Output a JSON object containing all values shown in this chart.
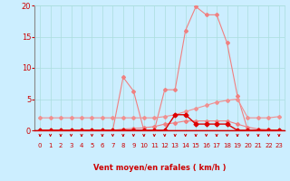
{
  "x": [
    0,
    1,
    2,
    3,
    4,
    5,
    6,
    7,
    8,
    9,
    10,
    11,
    12,
    13,
    14,
    15,
    16,
    17,
    18,
    19,
    20,
    21,
    22,
    23
  ],
  "line_top": [
    0,
    0,
    0,
    0,
    0,
    0,
    0,
    0,
    8.5,
    6.3,
    0,
    0,
    6.5,
    6.5,
    16,
    19.8,
    18.5,
    18.5,
    14,
    5.5,
    0,
    0,
    0,
    0
  ],
  "line_moyen": [
    2,
    2,
    2,
    2,
    2,
    2,
    2,
    2,
    2,
    2,
    2,
    2,
    2.2,
    2.5,
    3,
    3.5,
    4,
    4.5,
    4.8,
    5,
    2,
    2,
    2,
    2.2
  ],
  "line_rafales": [
    0,
    0,
    0,
    0,
    0,
    0,
    0,
    0,
    0.2,
    0.3,
    0.4,
    0.6,
    1,
    1.2,
    1.5,
    1.5,
    1.5,
    1.5,
    1.5,
    1,
    0.5,
    0.2,
    0.1,
    0
  ],
  "line_dark": [
    0,
    0,
    0,
    0,
    0,
    0,
    0,
    0,
    0,
    0,
    0,
    0,
    0,
    2.5,
    2.5,
    1,
    1,
    1,
    1,
    0,
    0,
    0,
    0,
    0
  ],
  "xlabel": "Vent moyen/en rafales ( km/h )",
  "ylim": [
    0,
    20
  ],
  "xlim": [
    -0.5,
    23.5
  ],
  "yticks": [
    0,
    5,
    10,
    15,
    20
  ],
  "xticks": [
    0,
    1,
    2,
    3,
    4,
    5,
    6,
    7,
    8,
    9,
    10,
    11,
    12,
    13,
    14,
    15,
    16,
    17,
    18,
    19,
    20,
    21,
    22,
    23
  ],
  "bg_color": "#cceeff",
  "grid_color": "#aadddd",
  "line_color_top": "#f08080",
  "line_color_moyen": "#f09090",
  "line_color_dark": "#dd0000",
  "line_color_rafales": "#f09090",
  "arrow_color": "#cc0000",
  "axis_line_color": "#cc0000",
  "tick_color": "#cc0000",
  "label_color": "#cc0000",
  "marker_size": 2.0,
  "marker_shape": "D"
}
